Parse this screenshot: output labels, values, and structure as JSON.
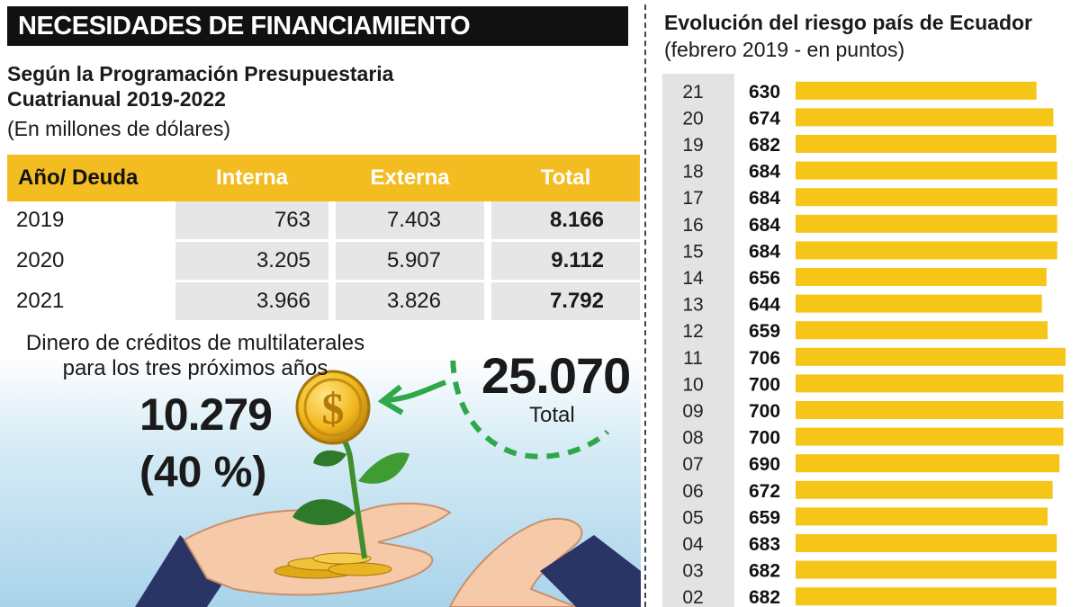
{
  "left_panel": {
    "header": "NECESIDADES DE FINANCIAMIENTO",
    "subtitle_line1": "Según la Programación Presupuestaria",
    "subtitle_line2": "Cuatrianual 2019-2022",
    "units": "(En millones de dólares)",
    "table": {
      "headers": [
        "Año/ Deuda",
        "Interna",
        "Externa",
        "Total"
      ],
      "rows": [
        {
          "year": "2019",
          "interna": "763",
          "externa": "7.403",
          "total": "8.166"
        },
        {
          "year": "2020",
          "interna": "3.205",
          "externa": "5.907",
          "total": "9.112"
        },
        {
          "year": "2021",
          "interna": "3.966",
          "externa": "3.826",
          "total": "7.792"
        }
      ]
    },
    "credits_line1": "Dinero de créditos de multilaterales",
    "credits_line2": "para los tres próximos años",
    "credits_value": "10.279",
    "credits_pct": "(40 %)",
    "total_value": "25.070",
    "total_label": "Total",
    "coin_symbol": "$",
    "colors": {
      "accent": "#f3bd21",
      "header_bg": "#111111",
      "cell_bg": "#e6e6e6",
      "arrow": "#2ea84a"
    }
  },
  "chart_data": {
    "type": "bar",
    "orientation": "horizontal",
    "title": "Evolución del riesgo país de Ecuador",
    "subtitle": "(febrero 2019 - en puntos)",
    "categories": [
      "21",
      "20",
      "19",
      "18",
      "17",
      "16",
      "15",
      "14",
      "13",
      "12",
      "11",
      "10",
      "09",
      "08",
      "07",
      "06",
      "05",
      "04",
      "03",
      "02"
    ],
    "values": [
      630,
      674,
      682,
      684,
      684,
      684,
      684,
      656,
      644,
      659,
      706,
      700,
      700,
      700,
      690,
      672,
      659,
      683,
      682,
      682
    ],
    "bar_color": "#f5c518",
    "grid": false,
    "legend": "none"
  }
}
